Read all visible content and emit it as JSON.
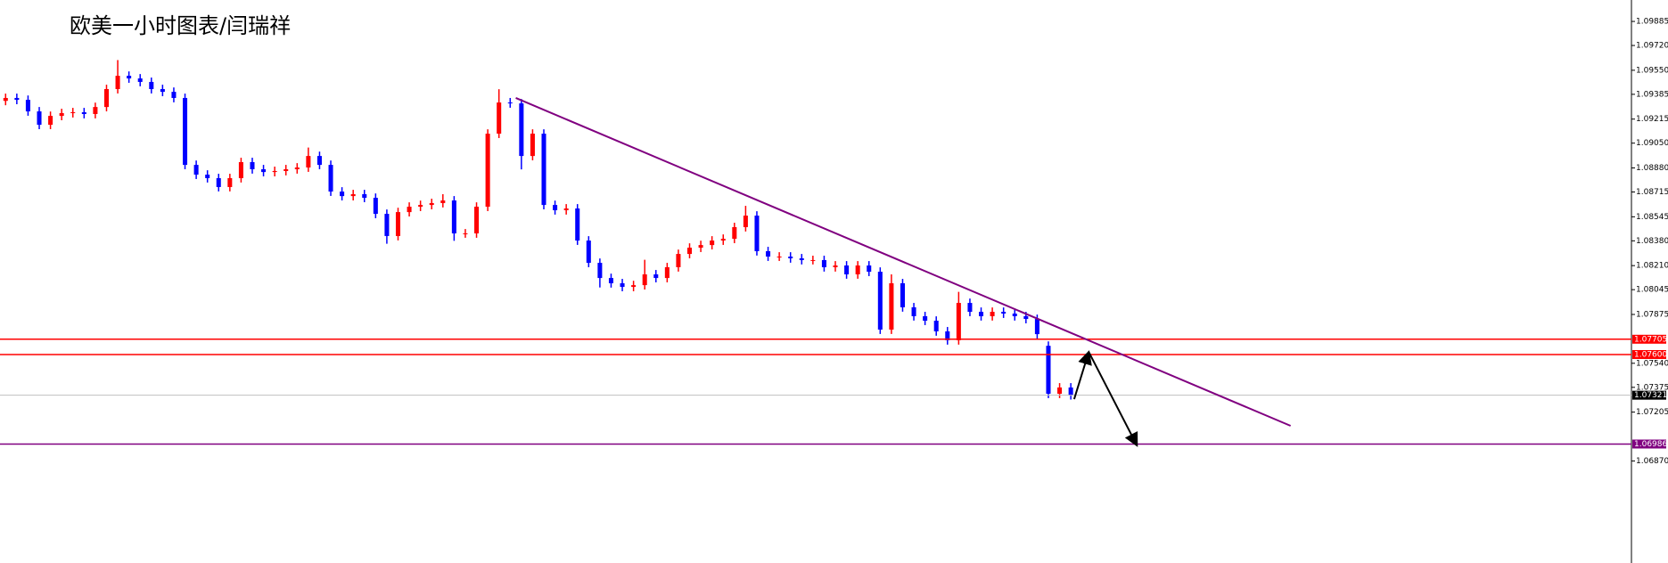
{
  "chart_data": {
    "type": "candlestick",
    "title": "欧美一小时图表/闫瑞祥",
    "up_color": "#ff0000",
    "down_color": "#0000ff",
    "xlim": [
      -0.5,
      145
    ],
    "ylim": [
      1.0617,
      1.10032
    ],
    "yticks": [
      1.09885,
      {
        "value": 1.0972,
        "label": "1.09720"
      },
      {
        "value": 1.0955,
        "label": "1.09550"
      },
      1.09385,
      1.09215,
      {
        "value": 1.0905,
        "label": "1.09050"
      },
      {
        "value": 1.0888,
        "label": "1.08880"
      },
      1.08715,
      1.08545,
      {
        "value": 1.0838,
        "label": "1.08380"
      },
      {
        "value": 1.0821,
        "label": "1.08210"
      },
      1.08045,
      1.07875,
      {
        "value": 1.0754,
        "label": "1.07540"
      },
      1.07375,
      1.07205,
      {
        "value": 1.0687,
        "label": "1.06870"
      }
    ],
    "ohlc": [
      [
        1.0934,
        1.0939,
        1.0931,
        1.0936
      ],
      [
        1.0936,
        1.0939,
        1.09317,
        1.09347
      ],
      [
        1.09347,
        1.09377,
        1.09238,
        1.09268
      ],
      [
        1.09268,
        1.09298,
        1.09146,
        1.09176
      ],
      [
        1.09176,
        1.09267,
        1.09146,
        1.09237
      ],
      [
        1.09237,
        1.09286,
        1.09207,
        1.09256
      ],
      [
        1.09256,
        1.09292,
        1.09226,
        1.09262
      ],
      [
        1.09262,
        1.09292,
        1.0922,
        1.0925
      ],
      [
        1.0925,
        1.09328,
        1.0922,
        1.09298
      ],
      [
        1.09298,
        1.09451,
        1.09268,
        1.09421
      ],
      [
        1.09421,
        1.0962,
        1.09391,
        1.09512
      ],
      [
        1.09512,
        1.09542,
        1.09464,
        1.09494
      ],
      [
        1.09494,
        1.09524,
        1.0944,
        1.0947
      ],
      [
        1.0947,
        1.095,
        1.09391,
        1.09421
      ],
      [
        1.09421,
        1.09451,
        1.09372,
        1.09402
      ],
      [
        1.09402,
        1.09432,
        1.0933,
        1.0936
      ],
      [
        1.0936,
        1.0939,
        1.08871,
        1.08901
      ],
      [
        1.08901,
        1.08931,
        1.08804,
        1.08834
      ],
      [
        1.08834,
        1.08864,
        1.0878,
        1.0881
      ],
      [
        1.0881,
        1.0884,
        1.08719,
        1.08749
      ],
      [
        1.08749,
        1.0884,
        1.08719,
        1.0881
      ],
      [
        1.0881,
        1.0895,
        1.0878,
        1.0892
      ],
      [
        1.0892,
        1.0895,
        1.08841,
        1.08871
      ],
      [
        1.08871,
        1.08901,
        1.08822,
        1.08852
      ],
      [
        1.08852,
        1.08889,
        1.08822,
        1.08859
      ],
      [
        1.08859,
        1.08901,
        1.08829,
        1.08871
      ],
      [
        1.08871,
        1.08913,
        1.08841,
        1.08883
      ],
      [
        1.08883,
        1.0902,
        1.08853,
        1.08962
      ],
      [
        1.08962,
        1.08992,
        1.08871,
        1.08901
      ],
      [
        1.08901,
        1.08931,
        1.08688,
        1.08718
      ],
      [
        1.08718,
        1.08748,
        1.08657,
        1.08687
      ],
      [
        1.08687,
        1.0873,
        1.08657,
        1.087
      ],
      [
        1.087,
        1.0873,
        1.08645,
        1.08675
      ],
      [
        1.08675,
        1.08705,
        1.08535,
        1.08565
      ],
      [
        1.08565,
        1.08595,
        1.0836,
        1.08413
      ],
      [
        1.08413,
        1.08607,
        1.08383,
        1.08577
      ],
      [
        1.08577,
        1.08644,
        1.08547,
        1.08614
      ],
      [
        1.08614,
        1.08656,
        1.08584,
        1.08626
      ],
      [
        1.08626,
        1.08669,
        1.08596,
        1.08639
      ],
      [
        1.08639,
        1.087,
        1.08609,
        1.08657
      ],
      [
        1.08657,
        1.08687,
        1.0838,
        1.08431
      ],
      [
        1.08431,
        1.08461,
        1.08401,
        1.08431
      ],
      [
        1.08431,
        1.08644,
        1.08401,
        1.08614
      ],
      [
        1.08614,
        1.09145,
        1.08584,
        1.09115
      ],
      [
        1.09115,
        1.0942,
        1.09085,
        1.09329
      ],
      [
        1.09329,
        1.0936,
        1.09293,
        1.09323
      ],
      [
        1.09323,
        1.09353,
        1.0887,
        1.08962
      ],
      [
        1.08962,
        1.09145,
        1.08932,
        1.09115
      ],
      [
        1.09115,
        1.09145,
        1.08596,
        1.08626
      ],
      [
        1.08626,
        1.08656,
        1.0856,
        1.0859
      ],
      [
        1.0859,
        1.08632,
        1.0856,
        1.08602
      ],
      [
        1.08602,
        1.08632,
        1.08352,
        1.08382
      ],
      [
        1.08382,
        1.08412,
        1.08199,
        1.08229
      ],
      [
        1.08229,
        1.08259,
        1.0806,
        1.08125
      ],
      [
        1.08125,
        1.08155,
        1.08059,
        1.08089
      ],
      [
        1.08089,
        1.08119,
        1.08034,
        1.08064
      ],
      [
        1.08064,
        1.08106,
        1.08034,
        1.08076
      ],
      [
        1.08076,
        1.0825,
        1.08046,
        1.0815
      ],
      [
        1.0815,
        1.0818,
        1.08095,
        1.08125
      ],
      [
        1.08125,
        1.08229,
        1.08095,
        1.08199
      ],
      [
        1.08199,
        1.0832,
        1.08169,
        1.0829
      ],
      [
        1.0829,
        1.08363,
        1.0826,
        1.08333
      ],
      [
        1.08333,
        1.08381,
        1.08303,
        1.08351
      ],
      [
        1.08351,
        1.08412,
        1.08321,
        1.08382
      ],
      [
        1.08382,
        1.08424,
        1.08352,
        1.08394
      ],
      [
        1.08394,
        1.08504,
        1.08364,
        1.08474
      ],
      [
        1.08474,
        1.0862,
        1.08444,
        1.08553
      ],
      [
        1.08553,
        1.08583,
        1.08279,
        1.08309
      ],
      [
        1.08309,
        1.08339,
        1.08242,
        1.08272
      ],
      [
        1.08272,
        1.08302,
        1.08242,
        1.08272
      ],
      [
        1.08272,
        1.08302,
        1.0823,
        1.0826
      ],
      [
        1.0826,
        1.0829,
        1.08218,
        1.08248
      ],
      [
        1.08248,
        1.08278,
        1.08218,
        1.08248
      ],
      [
        1.08248,
        1.08278,
        1.08169,
        1.08199
      ],
      [
        1.08199,
        1.08241,
        1.08169,
        1.08211
      ],
      [
        1.08211,
        1.08241,
        1.0812,
        1.0815
      ],
      [
        1.0815,
        1.08241,
        1.0812,
        1.08211
      ],
      [
        1.08211,
        1.08241,
        1.08138,
        1.08168
      ],
      [
        1.08168,
        1.08198,
        1.07741,
        1.07771
      ],
      [
        1.07771,
        1.0815,
        1.07741,
        1.08089
      ],
      [
        1.08089,
        1.08119,
        1.07894,
        1.07924
      ],
      [
        1.07924,
        1.07954,
        1.07833,
        1.07863
      ],
      [
        1.07863,
        1.07893,
        1.07802,
        1.07832
      ],
      [
        1.07832,
        1.07862,
        1.07729,
        1.07759
      ],
      [
        1.07759,
        1.07789,
        1.07668,
        1.07698
      ],
      [
        1.07698,
        1.0803,
        1.07668,
        1.07954
      ],
      [
        1.07954,
        1.07984,
        1.07863,
        1.07893
      ],
      [
        1.07893,
        1.07923,
        1.07833,
        1.07863
      ],
      [
        1.07863,
        1.07923,
        1.07833,
        1.07893
      ],
      [
        1.07893,
        1.07923,
        1.07851,
        1.07881
      ],
      [
        1.07881,
        1.07911,
        1.07833,
        1.07863
      ],
      [
        1.07863,
        1.07893,
        1.07814,
        1.07844
      ],
      [
        1.07844,
        1.07874,
        1.0771,
        1.0774
      ],
      [
        1.0766,
        1.0769,
        1.07301,
        1.07331
      ],
      [
        1.07331,
        1.07404,
        1.07301,
        1.07374
      ],
      [
        1.07374,
        1.07404,
        1.07291,
        1.07321
      ]
    ],
    "levels": [
      {
        "value": 1.07705,
        "color": "#ff0000"
      },
      {
        "value": 1.076,
        "label": "1.07600",
        "color": "#ff0000"
      },
      {
        "value": 1.06986,
        "color": "#800080"
      },
      {
        "value": 1.07321,
        "color": "#000000",
        "line_color": "#c0c0c0"
      }
    ],
    "trendline": {
      "start": [
        45.5,
        1.0936
      ],
      "end": [
        114.6,
        1.07111
      ],
      "color": "#800080"
    },
    "projection": {
      "points": [
        [
          95.3,
          1.07294
        ],
        [
          96.6,
          1.07618
        ],
        [
          100.9,
          1.06976
        ]
      ],
      "color": "#000000"
    }
  }
}
